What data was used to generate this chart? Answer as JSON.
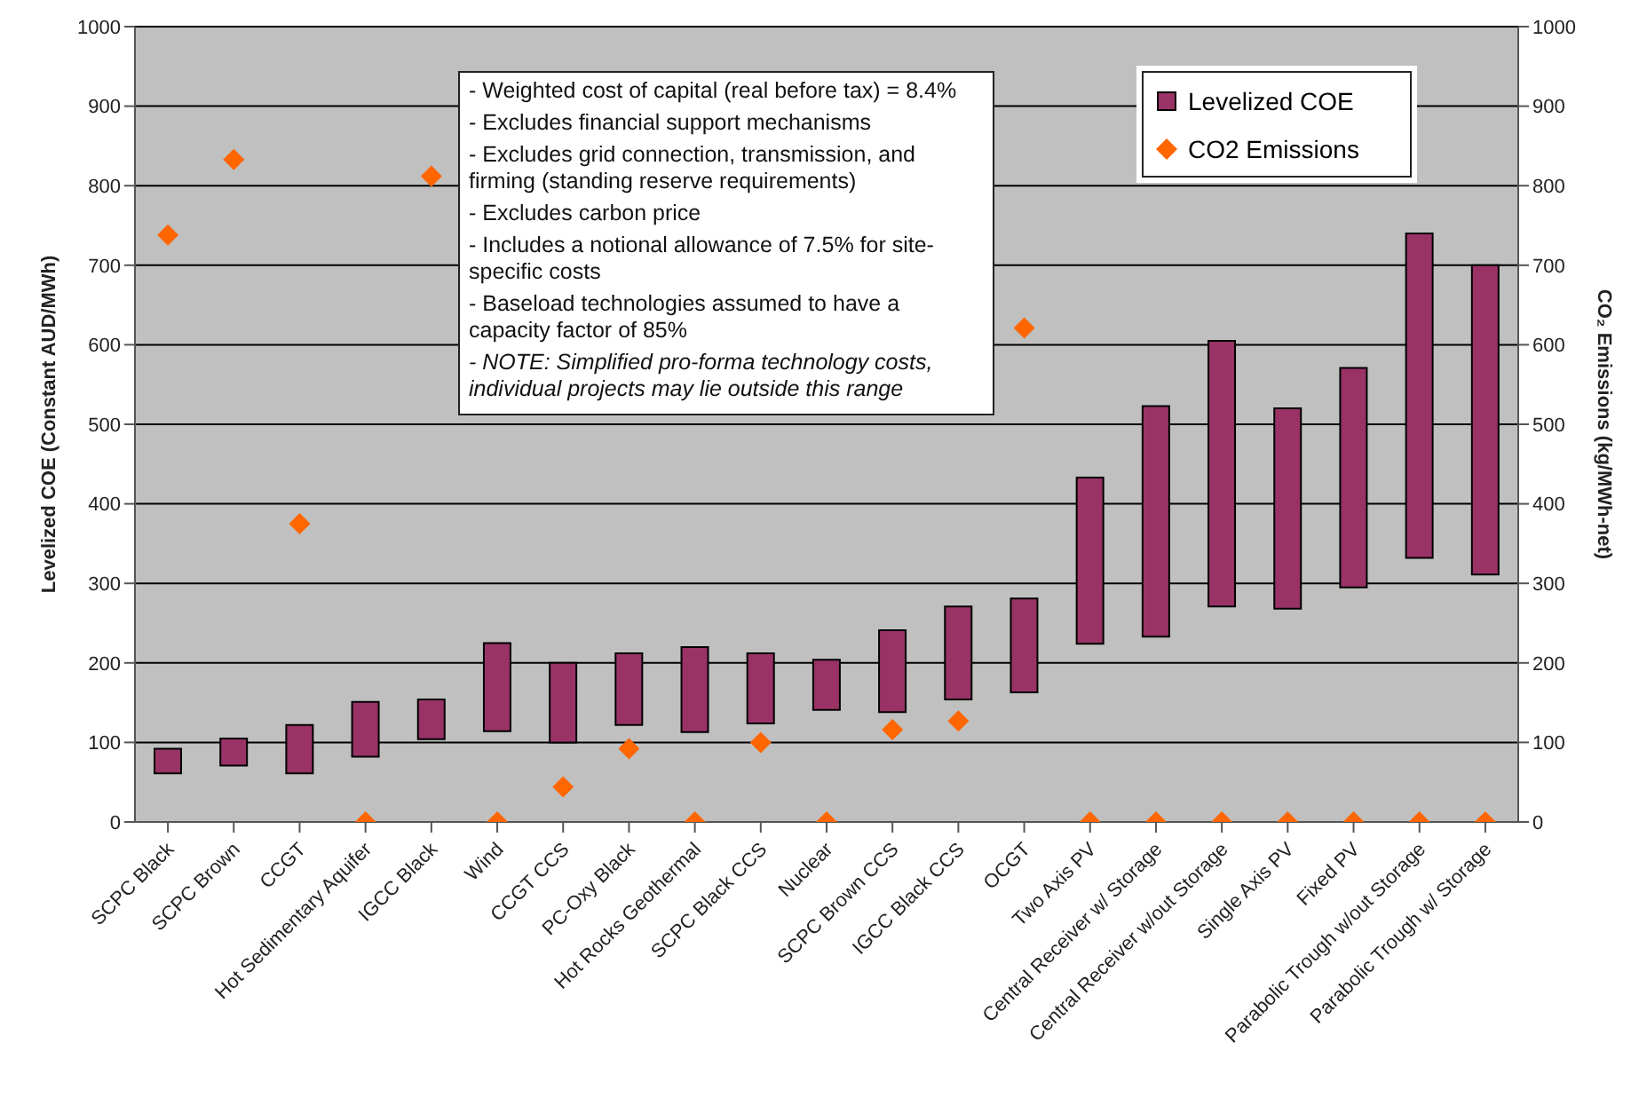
{
  "chart_data": {
    "type": "bar",
    "ylabel": "Levelized COE (Constant AUD/MWh)",
    "y2label": "CO₂ Emissions (kg/MWh-net)",
    "categories": [
      "SCPC Black",
      "SCPC Brown",
      "CCGT",
      "Hot Sedimentary Aquifer",
      "IGCC Black",
      "Wind",
      "CCGT CCS",
      "PC-Oxy Black",
      "Hot Rocks Geothermal",
      "SCPC Black CCS",
      "Nuclear",
      "SCPC Brown CCS",
      "IGCC Black CCS",
      "OCGT",
      "Two Axis PV",
      "Central Receiver w/ Storage",
      "Central Receiver w/out Storage",
      "Single Axis PV",
      "Fixed PV",
      "Parabolic Trough w/out Storage",
      "Parabolic Trough w/ Storage"
    ],
    "series": [
      {
        "name": "Levelized COE",
        "type": "bar",
        "color": "#993366",
        "base": [
          61,
          71,
          61,
          82,
          104,
          114,
          100,
          122,
          113,
          124,
          141,
          138,
          154,
          163,
          224,
          233,
          271,
          268,
          295,
          332,
          311
        ],
        "values": [
          31,
          34,
          61,
          69,
          50,
          111,
          100,
          90,
          107,
          88,
          63,
          103,
          117,
          118,
          209,
          290,
          334,
          252,
          276,
          408,
          389
        ]
      },
      {
        "name": "CO2 Emissions",
        "type": "scatter",
        "axis": "y2",
        "color": "#ff6600",
        "values": [
          738,
          833,
          375,
          0,
          812,
          0,
          44,
          92,
          0,
          100,
          0,
          116,
          127,
          621,
          0,
          0,
          0,
          0,
          0,
          0,
          0
        ]
      }
    ],
    "marker": "diamond",
    "ylim": [
      0,
      1000
    ],
    "yticks": [
      0,
      100,
      200,
      300,
      400,
      500,
      600,
      700,
      800,
      900,
      1000
    ],
    "y2lim": [
      0,
      1000
    ],
    "y2ticks": [
      0,
      100,
      200,
      300,
      400,
      500,
      600,
      700,
      800,
      900,
      1000
    ],
    "grid": "y",
    "legend": "top right",
    "annotations": [
      "- Weighted cost of capital (real before tax) = 8.4%",
      "- Excludes financial support mechanisms",
      "- Excludes grid connection, transmission, and firming (standing reserve requirements)",
      "- Excludes carbon price",
      "- Includes a notional allowance of 7.5% for site-specific costs",
      "- Baseload technologies assumed to have a capacity factor of 85%",
      "- NOTE: Simplified pro-forma technology costs, individual projects may lie outside this range"
    ]
  }
}
